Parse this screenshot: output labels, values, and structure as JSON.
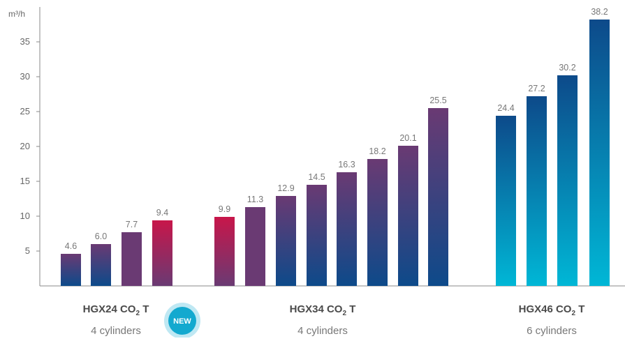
{
  "chart_data": {
    "type": "bar",
    "ylabel": "m³/h",
    "ylim": [
      0,
      40
    ],
    "yticks": [
      5,
      10,
      15,
      20,
      25,
      30,
      35
    ],
    "grid": false,
    "groups": [
      {
        "title": "HGX24 CO",
        "subscript": "2",
        "suffix": " T",
        "subtitle": "4 cylinders",
        "badge": "NEW",
        "values": [
          4.6,
          6.0,
          7.7,
          9.4
        ],
        "labels": [
          "4.6",
          "6.0",
          "7.7",
          "9.4"
        ]
      },
      {
        "title": "HGX34 CO",
        "subscript": "2",
        "suffix": " T",
        "subtitle": "4 cylinders",
        "badge": "",
        "values": [
          9.9,
          11.3,
          12.9,
          14.5,
          16.3,
          18.2,
          20.1,
          25.5
        ],
        "labels": [
          "9.9",
          "11.3",
          "12.9",
          "14.5",
          "16.3",
          "18.2",
          "20.1",
          "25.5"
        ]
      },
      {
        "title": "HGX46 CO",
        "subscript": "2",
        "suffix": " T",
        "subtitle": "6 cylinders",
        "badge": "",
        "values": [
          24.4,
          27.2,
          30.2,
          38.2
        ],
        "labels": [
          "24.4",
          "27.2",
          "30.2",
          "38.2"
        ]
      }
    ],
    "colors": {
      "navy": "#0d4a8a",
      "crimson": "#c8164a",
      "purple": "#6a3a73",
      "cyan": "#00b7d6",
      "badge": "#13a9cf",
      "badge_ring": "#bfe8f3"
    }
  }
}
